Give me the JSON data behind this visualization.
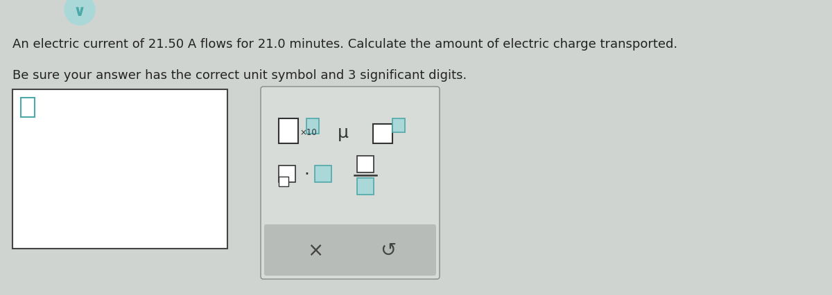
{
  "bg_color": "#d0d4d0",
  "text_line1": "An electric current of 21.50 A flows for 21.0 minutes. Calculate the amount of electric charge transported.",
  "text_line2": "Be sure your answer has the correct unit symbol and 3 significant digits.",
  "text_color": "#222222",
  "font_size_main": 13.0,
  "teal_color": "#4da8a8",
  "teal_fill": "#aad8d8",
  "dark_border": "#333333",
  "panel_bg": "#d8dcd8",
  "panel_border": "#888888",
  "bottom_bar_bg": "#b8bcb8",
  "white": "#ffffff",
  "left_box_border": "#444444"
}
